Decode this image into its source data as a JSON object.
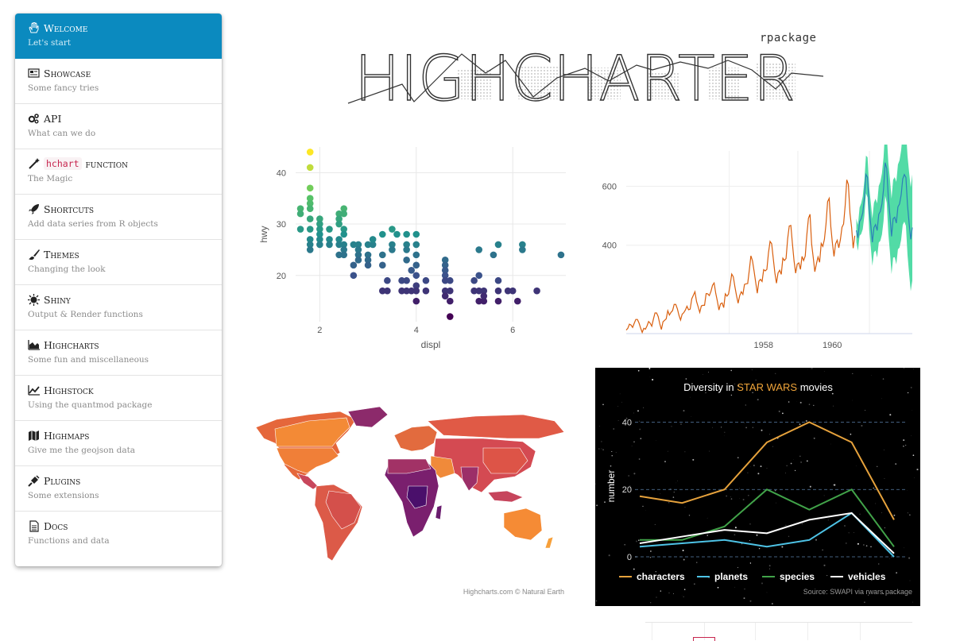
{
  "sidebar": {
    "items": [
      {
        "title": "Welcome",
        "subtitle": "Let's start",
        "icon": "hand-icon",
        "active": true
      },
      {
        "title": "Showcase",
        "subtitle": "Some fancy tries",
        "icon": "newspaper-icon"
      },
      {
        "title": "API",
        "subtitle": "What can we do",
        "icon": "gears-icon"
      },
      {
        "title_code": "hchart",
        "title": "function",
        "subtitle": "The Magic",
        "icon": "magic-wand-icon"
      },
      {
        "title": "Shortcuts",
        "subtitle": "Add data series from R objects",
        "icon": "rocket-icon"
      },
      {
        "title": "Themes",
        "subtitle": "Changing the look",
        "icon": "paintbrush-icon"
      },
      {
        "title": "Shiny",
        "subtitle": "Output & Render functions",
        "icon": "sun-icon"
      },
      {
        "title": "Highcharts",
        "subtitle": "Some fun and miscellaneous",
        "icon": "area-chart-icon"
      },
      {
        "title": "Highstock",
        "subtitle": "Using the quantmod package",
        "icon": "line-chart-icon"
      },
      {
        "title": "Highmaps",
        "subtitle": "Give me the geojson data",
        "icon": "map-icon"
      },
      {
        "title": "Plugins",
        "subtitle": "Some extensions",
        "icon": "plug-icon"
      },
      {
        "title": "Docs",
        "subtitle": "Functions and data",
        "icon": "document-icon"
      }
    ]
  },
  "logo": {
    "text": "HIGHCHARTER",
    "tag": "rpackage"
  },
  "scatter": {
    "chart_data": {
      "type": "scatter",
      "xlabel": "displ",
      "ylabel": "hwy",
      "xlim": [
        1.5,
        7.1
      ],
      "ylim": [
        11,
        45
      ],
      "xticks": [
        2,
        4,
        6
      ],
      "yticks": [
        20,
        30,
        40
      ],
      "color_scale": "viridis",
      "points": [
        [
          1.8,
          44
        ],
        [
          1.8,
          41
        ],
        [
          1.6,
          33
        ],
        [
          1.6,
          32
        ],
        [
          1.6,
          29
        ],
        [
          1.8,
          37
        ],
        [
          1.8,
          35
        ],
        [
          1.8,
          34
        ],
        [
          1.8,
          33
        ],
        [
          1.8,
          31
        ],
        [
          1.8,
          29
        ],
        [
          1.8,
          27
        ],
        [
          1.8,
          26
        ],
        [
          1.8,
          25
        ],
        [
          2.0,
          31
        ],
        [
          2.0,
          30
        ],
        [
          2.0,
          29
        ],
        [
          2.0,
          28
        ],
        [
          2.0,
          27
        ],
        [
          2.0,
          26
        ],
        [
          2.2,
          29
        ],
        [
          2.2,
          27
        ],
        [
          2.2,
          26
        ],
        [
          2.4,
          32
        ],
        [
          2.4,
          31
        ],
        [
          2.4,
          30
        ],
        [
          2.4,
          27
        ],
        [
          2.4,
          26
        ],
        [
          2.4,
          24
        ],
        [
          2.5,
          33
        ],
        [
          2.5,
          32
        ],
        [
          2.5,
          29
        ],
        [
          2.5,
          28
        ],
        [
          2.5,
          26
        ],
        [
          2.5,
          25
        ],
        [
          2.5,
          24
        ],
        [
          2.7,
          26
        ],
        [
          2.7,
          22
        ],
        [
          2.7,
          20
        ],
        [
          2.8,
          26
        ],
        [
          2.8,
          25
        ],
        [
          2.8,
          24
        ],
        [
          2.8,
          23
        ],
        [
          3.0,
          26
        ],
        [
          3.0,
          24
        ],
        [
          3.0,
          23
        ],
        [
          3.0,
          22
        ],
        [
          3.1,
          26
        ],
        [
          3.1,
          27
        ],
        [
          3.3,
          28
        ],
        [
          3.3,
          24
        ],
        [
          3.3,
          22
        ],
        [
          3.3,
          17
        ],
        [
          3.4,
          19
        ],
        [
          3.4,
          17
        ],
        [
          3.5,
          29
        ],
        [
          3.5,
          26
        ],
        [
          3.5,
          25
        ],
        [
          3.6,
          28
        ],
        [
          3.7,
          19
        ],
        [
          3.7,
          17
        ],
        [
          3.8,
          28
        ],
        [
          3.8,
          26
        ],
        [
          3.8,
          25
        ],
        [
          3.8,
          23
        ],
        [
          3.8,
          19
        ],
        [
          3.8,
          17
        ],
        [
          3.9,
          21
        ],
        [
          3.9,
          17
        ],
        [
          4.0,
          28
        ],
        [
          4.0,
          26
        ],
        [
          4.0,
          24
        ],
        [
          4.0,
          22
        ],
        [
          4.0,
          20
        ],
        [
          4.0,
          18
        ],
        [
          4.0,
          17
        ],
        [
          4.0,
          15
        ],
        [
          4.2,
          19
        ],
        [
          4.2,
          17
        ],
        [
          4.6,
          23
        ],
        [
          4.6,
          22
        ],
        [
          4.6,
          21
        ],
        [
          4.6,
          20
        ],
        [
          4.6,
          19
        ],
        [
          4.6,
          17
        ],
        [
          4.6,
          16
        ],
        [
          4.7,
          19
        ],
        [
          4.7,
          17
        ],
        [
          4.7,
          15
        ],
        [
          4.7,
          12
        ],
        [
          5.2,
          19
        ],
        [
          5.2,
          17
        ],
        [
          5.3,
          25
        ],
        [
          5.3,
          20
        ],
        [
          5.3,
          17
        ],
        [
          5.3,
          15
        ],
        [
          5.4,
          17
        ],
        [
          5.4,
          15
        ],
        [
          5.4,
          16
        ],
        [
          5.6,
          24
        ],
        [
          5.7,
          26
        ],
        [
          5.7,
          19
        ],
        [
          5.7,
          17
        ],
        [
          5.7,
          15
        ],
        [
          5.9,
          17
        ],
        [
          6.0,
          17
        ],
        [
          6.1,
          15
        ],
        [
          6.2,
          26
        ],
        [
          6.2,
          25
        ],
        [
          6.5,
          17
        ],
        [
          7.0,
          24
        ]
      ]
    }
  },
  "airpass": {
    "chart_data": {
      "type": "line",
      "xticks": [
        "1958",
        "1960"
      ],
      "yticks": [
        400,
        600
      ],
      "xlim": [
        1949,
        1963
      ],
      "ylim": [
        100,
        720
      ],
      "series": [
        {
          "kind": "observed",
          "color": "#d95f0e",
          "values": [
            112,
            118,
            132,
            129,
            121,
            135,
            148,
            148,
            136,
            119,
            104,
            118,
            115,
            126,
            141,
            135,
            125,
            149,
            170,
            170,
            158,
            133,
            114,
            140,
            145,
            150,
            178,
            163,
            172,
            178,
            199,
            199,
            184,
            162,
            146,
            166,
            171,
            180,
            193,
            181,
            183,
            218,
            230,
            242,
            209,
            191,
            172,
            194,
            196,
            196,
            236,
            235,
            229,
            243,
            264,
            272,
            237,
            211,
            180,
            201,
            204,
            188,
            235,
            227,
            234,
            264,
            302,
            293,
            259,
            229,
            203,
            229,
            242,
            233,
            267,
            269,
            270,
            315,
            364,
            347,
            312,
            274,
            237,
            278,
            284,
            277,
            317,
            313,
            318,
            374,
            413,
            405,
            355,
            306,
            271,
            306,
            315,
            301,
            356,
            348,
            355,
            422,
            465,
            467,
            404,
            347,
            305,
            336,
            340,
            318,
            362,
            348,
            363,
            435,
            491,
            505,
            404,
            359,
            310,
            337,
            360,
            342,
            406,
            396,
            420,
            472,
            548,
            559,
            463,
            407,
            362,
            405,
            417,
            391,
            419,
            461,
            472,
            535,
            622,
            606,
            508,
            461,
            390,
            432
          ]
        },
        {
          "kind": "forecast",
          "color": "#2c7fb8",
          "values": [
            450,
            425,
            480,
            490,
            510,
            560,
            640,
            630,
            525,
            470,
            410,
            460,
            470,
            450,
            505,
            515,
            540,
            590,
            680,
            660,
            560,
            500,
            430,
            490,
            495,
            475,
            530,
            540,
            570,
            625,
            640,
            630,
            535,
            475,
            420,
            460
          ]
        }
      ],
      "forecast_band_color": "#3fd79c"
    }
  },
  "map": {
    "credits": "Highcharts.com © Natural Earth"
  },
  "starwars": {
    "chart_data": {
      "type": "line",
      "title_prefix": "Diversity in ",
      "title_highlight": "STAR WARS",
      "title_suffix": " movies",
      "ylabel": "number",
      "ylim": [
        0,
        42
      ],
      "yticks": [
        0,
        20,
        40
      ],
      "series": [
        {
          "name": "characters",
          "color": "#e6a23c",
          "values": [
            18,
            16,
            20,
            34,
            40,
            34,
            11
          ]
        },
        {
          "name": "planets",
          "color": "#4ec3e6",
          "values": [
            3,
            4,
            5,
            3,
            5,
            13,
            0
          ]
        },
        {
          "name": "species",
          "color": "#41a349",
          "values": [
            5,
            5,
            9,
            20,
            14,
            20,
            3
          ]
        },
        {
          "name": "vehicles",
          "color": "#ffffff",
          "values": [
            4,
            6,
            8,
            7,
            11,
            13,
            1
          ]
        }
      ],
      "source": "Source: SWAPI via rwars package"
    }
  }
}
